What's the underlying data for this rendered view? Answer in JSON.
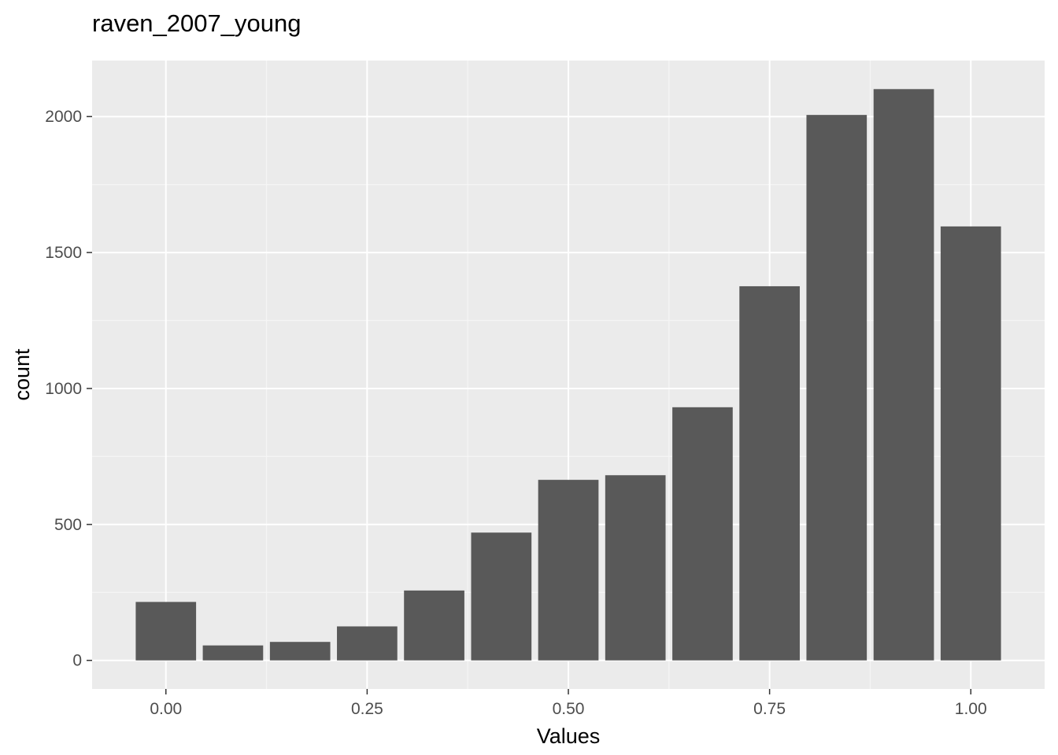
{
  "chart_data": {
    "type": "bar",
    "title": "raven_2007_young",
    "xlabel": "Values",
    "ylabel": "count",
    "x": [
      0.0,
      0.0833,
      0.1667,
      0.25,
      0.3333,
      0.4167,
      0.5,
      0.5833,
      0.6667,
      0.75,
      0.8333,
      0.9167,
      1.0
    ],
    "values": [
      215,
      55,
      68,
      125,
      257,
      470,
      664,
      681,
      931,
      1376,
      2006,
      2101,
      1596
    ],
    "bin_width": 0.075,
    "xlim": [
      -0.0917,
      1.0917
    ],
    "ylim": [
      -105,
      2206
    ],
    "x_ticks": [
      0.0,
      0.25,
      0.5,
      0.75,
      1.0
    ],
    "x_tick_labels": [
      "0.00",
      "0.25",
      "0.50",
      "0.75",
      "1.00"
    ],
    "y_ticks": [
      0,
      500,
      1000,
      1500,
      2000
    ],
    "y_tick_labels": [
      "0",
      "500",
      "1000",
      "1500",
      "2000"
    ],
    "grid": true,
    "legend": "none",
    "colors": {
      "panel_background": "#ebebeb",
      "grid_major": "#ffffff",
      "grid_minor": "#f5f5f5",
      "bar_fill": "#595959",
      "tick_label": "#4d4d4d",
      "tick_mark": "#333333",
      "text": "#000000"
    }
  }
}
